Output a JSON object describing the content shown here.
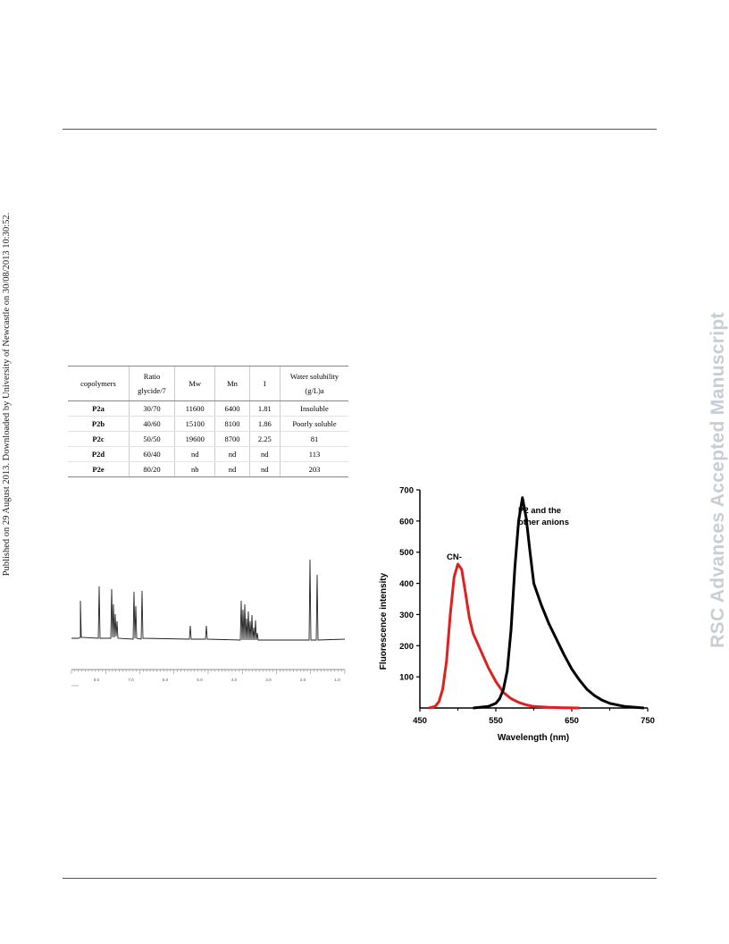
{
  "watermark_left": "Published on 29 August 2013. Downloaded by University of Newcastle on 30/08/2013 10:30:52.",
  "watermark_right": "RSC Advances Accepted Manuscript",
  "table": {
    "headers": [
      "copolymers",
      "Ratio glycide/7",
      "Mw",
      "Mn",
      "I",
      "Water solubility (g/L)a"
    ],
    "rows": [
      [
        "P2a",
        "30/70",
        "11600",
        "6400",
        "1.81",
        "Insoluble"
      ],
      [
        "P2b",
        "40/60",
        "15100",
        "8100",
        "1.86",
        "Poorly soluble"
      ],
      [
        "P2c",
        "50/50",
        "19600",
        "8700",
        "2.25",
        "81"
      ],
      [
        "P2d",
        "60/40",
        "nd",
        "nd",
        "nd",
        "113"
      ],
      [
        "P2e",
        "80/20",
        "nb",
        "nd",
        "nd",
        "203"
      ]
    ]
  },
  "nmr": {
    "tick_labels": [
      "8.0",
      "7.0",
      "6.0",
      "5.0",
      "4.0",
      "3.0",
      "2.0",
      "1.0"
    ]
  },
  "chart_data": {
    "type": "line",
    "xlabel": "Wavelength (nm)",
    "ylabel": "Fluorescence intensity",
    "xlim": [
      450,
      750
    ],
    "ylim": [
      0,
      700
    ],
    "xticks": [
      450,
      550,
      650,
      750
    ],
    "yticks": [
      100,
      200,
      300,
      400,
      500,
      600,
      700
    ],
    "series": [
      {
        "name": "CN-",
        "color": "#e02020",
        "x": [
          462,
          470,
          475,
          480,
          485,
          490,
          495,
          500,
          505,
          510,
          515,
          520,
          530,
          540,
          550,
          560,
          570,
          580,
          590,
          600,
          620,
          640,
          660
        ],
        "y": [
          0,
          5,
          20,
          60,
          150,
          300,
          420,
          462,
          445,
          370,
          290,
          240,
          185,
          130,
          85,
          50,
          30,
          18,
          10,
          5,
          2,
          1,
          0
        ]
      },
      {
        "name": "P2 and the other anions",
        "color": "#000000",
        "x": [
          520,
          540,
          550,
          555,
          560,
          565,
          570,
          575,
          580,
          585,
          590,
          595,
          600,
          610,
          620,
          630,
          640,
          650,
          660,
          670,
          680,
          690,
          700,
          720,
          745
        ],
        "y": [
          0,
          5,
          15,
          30,
          60,
          120,
          250,
          450,
          600,
          675,
          610,
          500,
          400,
          330,
          270,
          220,
          170,
          125,
          90,
          60,
          40,
          25,
          15,
          5,
          0
        ]
      }
    ]
  }
}
